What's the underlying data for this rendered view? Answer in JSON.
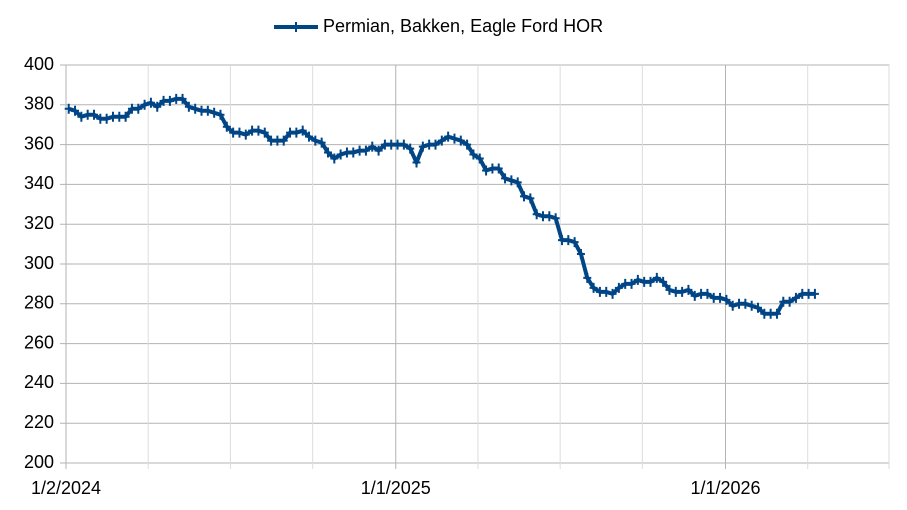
{
  "chart_data": {
    "type": "line",
    "x": [
      "2024-01-05",
      "2024-01-12",
      "2024-01-19",
      "2024-01-26",
      "2024-02-02",
      "2024-02-09",
      "2024-02-16",
      "2024-02-23",
      "2024-03-01",
      "2024-03-08",
      "2024-03-15",
      "2024-03-22",
      "2024-03-29",
      "2024-04-05",
      "2024-04-12",
      "2024-04-19",
      "2024-04-26",
      "2024-05-03",
      "2024-05-10",
      "2024-05-17",
      "2024-05-24",
      "2024-05-31",
      "2024-06-07",
      "2024-06-14",
      "2024-06-21",
      "2024-06-28",
      "2024-07-05",
      "2024-07-12",
      "2024-07-19",
      "2024-07-26",
      "2024-08-02",
      "2024-08-09",
      "2024-08-16",
      "2024-08-23",
      "2024-08-30",
      "2024-09-06",
      "2024-09-13",
      "2024-09-20",
      "2024-09-27",
      "2024-10-04",
      "2024-10-11",
      "2024-10-18",
      "2024-10-25",
      "2024-11-01",
      "2024-11-08",
      "2024-11-15",
      "2024-11-22",
      "2024-11-29",
      "2024-12-06",
      "2024-12-13",
      "2024-12-20",
      "2024-12-27",
      "2025-01-03",
      "2025-01-10",
      "2025-01-17",
      "2025-01-24",
      "2025-01-31",
      "2025-02-07",
      "2025-02-14",
      "2025-02-21",
      "2025-02-28",
      "2025-03-07",
      "2025-03-14",
      "2025-03-21",
      "2025-03-28",
      "2025-04-04",
      "2025-04-11",
      "2025-04-18",
      "2025-04-25",
      "2025-05-02",
      "2025-05-09",
      "2025-05-16",
      "2025-05-23",
      "2025-05-30",
      "2025-06-06",
      "2025-06-13",
      "2025-06-20",
      "2025-06-27",
      "2025-07-04",
      "2025-07-11",
      "2025-07-18",
      "2025-07-25",
      "2025-08-01",
      "2025-08-08",
      "2025-08-15",
      "2025-08-22",
      "2025-08-29",
      "2025-09-05",
      "2025-09-12",
      "2025-09-19",
      "2025-09-26",
      "2025-10-03",
      "2025-10-10",
      "2025-10-17",
      "2025-10-24",
      "2025-10-31",
      "2025-11-07",
      "2025-11-14",
      "2025-11-21",
      "2025-11-28",
      "2025-12-05",
      "2025-12-12",
      "2025-12-19",
      "2025-12-26",
      "2026-01-02",
      "2026-01-09",
      "2026-01-16",
      "2026-01-23",
      "2026-01-30",
      "2026-02-06",
      "2026-02-13",
      "2026-02-20",
      "2026-02-27",
      "2026-03-06",
      "2026-03-13",
      "2026-03-20",
      "2026-03-27",
      "2026-04-03",
      "2026-04-10"
    ],
    "series": [
      {
        "name": "Permian, Bakken, Eagle Ford HOR",
        "color": "#004586",
        "values": [
          378,
          377,
          374,
          375,
          375,
          373,
          373,
          374,
          374,
          374,
          378,
          378,
          380,
          381,
          379,
          382,
          382,
          383,
          383,
          379,
          378,
          377,
          377,
          376,
          375,
          369,
          366,
          366,
          365,
          367,
          367,
          366,
          362,
          362,
          362,
          366,
          366,
          367,
          364,
          362,
          361,
          356,
          353,
          355,
          356,
          356,
          357,
          357,
          359,
          357,
          360,
          360,
          360,
          360,
          358,
          351,
          359,
          360,
          360,
          362,
          364,
          363,
          362,
          360,
          355,
          353,
          347,
          348,
          348,
          343,
          342,
          341,
          334,
          333,
          325,
          324,
          324,
          323,
          312,
          312,
          311,
          305,
          293,
          288,
          286,
          286,
          285,
          288,
          290,
          290,
          292,
          291,
          291,
          293,
          291,
          287,
          286,
          286,
          287,
          284,
          285,
          285,
          283,
          283,
          282,
          279,
          280,
          280,
          279,
          278,
          275,
          275,
          275,
          281,
          281,
          283,
          285,
          285,
          285
        ]
      }
    ],
    "xlim": [
      "2024-01-02",
      "2026-07-01"
    ],
    "xticks": [
      {
        "value": "2024-01-02",
        "label": "1/2/2024"
      },
      {
        "value": "2025-01-01",
        "label": "1/1/2025"
      },
      {
        "value": "2026-01-01",
        "label": "1/1/2026"
      }
    ],
    "xminor_ticks": [
      "2024-04-02",
      "2024-07-02",
      "2024-10-01",
      "2025-04-02",
      "2025-07-02",
      "2025-10-01",
      "2026-04-02",
      "2026-07-01"
    ],
    "ylim": [
      200,
      400
    ],
    "yticks": [
      200,
      220,
      240,
      260,
      280,
      300,
      320,
      340,
      360,
      380,
      400
    ],
    "grid": true,
    "legend": "top"
  }
}
